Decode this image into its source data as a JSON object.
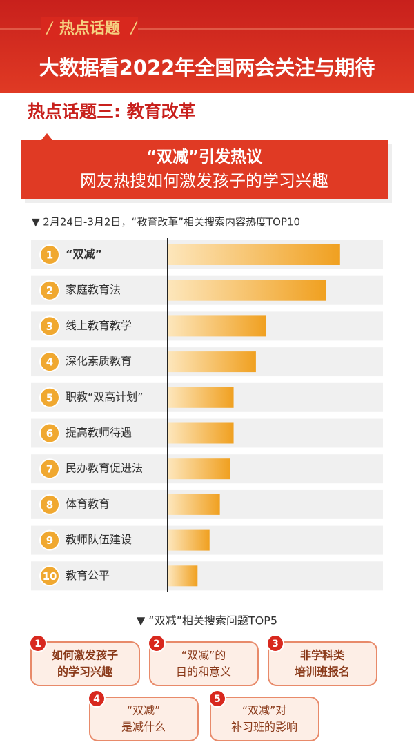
{
  "header": {
    "tag": "热点话题",
    "title": "大数据看2022年全国两会关注与期待"
  },
  "section_title": "热点话题三: 教育改革",
  "banner": {
    "line1": "“双减”引发热议",
    "line2": "网友热搜如何激发孩子的学习兴趣"
  },
  "chart_data": {
    "type": "bar",
    "orientation": "horizontal",
    "title": "▼ 2月24日-3月2日，“教育改革”相关搜索内容热度TOP10",
    "ranks": [
      1,
      2,
      3,
      4,
      5,
      6,
      7,
      8,
      9,
      10
    ],
    "categories": [
      "“双减”",
      "家庭教育法",
      "线上教育教学",
      "深化素质教育",
      "职教“双高计划”",
      "提高教师待遇",
      "民办教育促进法",
      "体育教育",
      "教师队伍建设",
      "教育公平"
    ],
    "values": [
      100,
      92,
      57,
      51,
      38,
      38,
      36,
      30,
      24,
      17
    ],
    "color": "#f0a020"
  },
  "questions": {
    "title": "▼ “双减”相关搜索问题TOP5",
    "items": [
      {
        "rank": 1,
        "lines": [
          "如何激发孩子",
          "的学习兴趣"
        ]
      },
      {
        "rank": 2,
        "lines": [
          "“双减”的",
          "目的和意义"
        ]
      },
      {
        "rank": 3,
        "lines": [
          "非学科类",
          "培训班报名"
        ]
      },
      {
        "rank": 4,
        "lines": [
          "“双减”",
          "是减什么"
        ]
      },
      {
        "rank": 5,
        "lines": [
          "“双减”对",
          "补习班的影响"
        ]
      }
    ]
  }
}
